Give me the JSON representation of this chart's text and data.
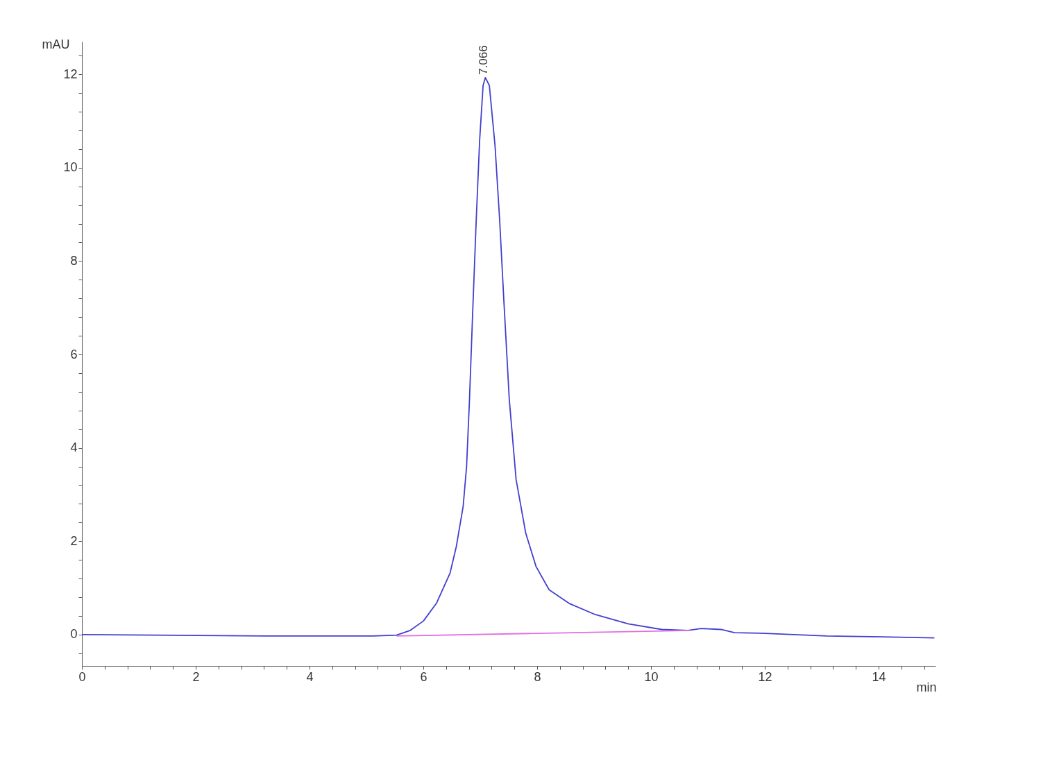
{
  "chart_data": {
    "type": "line",
    "xlabel": "min",
    "ylabel": "mAU",
    "xlim": [
      0,
      15
    ],
    "ylim": [
      -0.67,
      12.7
    ],
    "xticks": [
      0,
      {
        "value": 0.4,
        "label": null
      },
      {
        "value": 0.8,
        "label": null
      },
      {
        "value": 1.2,
        "label": null
      },
      {
        "value": 1.6,
        "label": null
      },
      2,
      {
        "value": 2.4,
        "label": null
      },
      {
        "value": 2.8,
        "label": null
      },
      {
        "value": 3.2,
        "label": null
      },
      {
        "value": 3.6,
        "label": null
      },
      4,
      {
        "value": 4.4,
        "label": null
      },
      {
        "value": 4.8,
        "label": null
      },
      {
        "value": 5.2,
        "label": null
      },
      {
        "value": 5.6,
        "label": null
      },
      6,
      {
        "value": 6.4,
        "label": null
      },
      {
        "value": 6.8,
        "label": null
      },
      {
        "value": 7.2,
        "label": null
      },
      {
        "value": 7.6,
        "label": null
      },
      8,
      {
        "value": 8.4,
        "label": null
      },
      {
        "value": 8.8,
        "label": null
      },
      {
        "value": 9.2,
        "label": null
      },
      {
        "value": 9.6,
        "label": null
      },
      10,
      {
        "value": 10.4,
        "label": null
      },
      {
        "value": 10.8,
        "label": null
      },
      {
        "value": 11.2,
        "label": null
      },
      {
        "value": 11.6,
        "label": null
      },
      12,
      {
        "value": 12.4,
        "label": null
      },
      {
        "value": 12.8,
        "label": null
      },
      {
        "value": 13.2,
        "label": null
      },
      {
        "value": 13.6,
        "label": null
      },
      14,
      {
        "value": 14.4,
        "label": null
      },
      {
        "value": 14.8,
        "label": null
      }
    ],
    "yticks": [
      {
        "value": -0.4,
        "label": null
      },
      0,
      {
        "value": 0.4,
        "label": null
      },
      {
        "value": 0.8,
        "label": null
      },
      {
        "value": 1.2,
        "label": null
      },
      {
        "value": 1.6,
        "label": null
      },
      2,
      {
        "value": 2.4,
        "label": null
      },
      {
        "value": 2.8,
        "label": null
      },
      {
        "value": 3.2,
        "label": null
      },
      {
        "value": 3.6,
        "label": null
      },
      4,
      {
        "value": 4.4,
        "label": null
      },
      {
        "value": 4.8,
        "label": null
      },
      {
        "value": 5.2,
        "label": null
      },
      {
        "value": 5.6,
        "label": null
      },
      6,
      {
        "value": 6.4,
        "label": null
      },
      {
        "value": 6.8,
        "label": null
      },
      {
        "value": 7.2,
        "label": null
      },
      {
        "value": 7.6,
        "label": null
      },
      8,
      {
        "value": 8.4,
        "label": null
      },
      {
        "value": 8.8,
        "label": null
      },
      {
        "value": 9.2,
        "label": null
      },
      {
        "value": 9.6,
        "label": null
      },
      10,
      {
        "value": 10.4,
        "label": null
      },
      {
        "value": 10.8,
        "label": null
      },
      {
        "value": 11.2,
        "label": null
      },
      {
        "value": 11.6,
        "label": null
      },
      12,
      {
        "value": 12.4,
        "label": null
      }
    ],
    "grid": false,
    "marker": "none",
    "line_style": "solid",
    "annotations": [
      {
        "text": "7.066",
        "x": 7.066,
        "y": 11.93
      }
    ],
    "series": [
      {
        "color": "#4040d0",
        "x": [
          0,
          3.21,
          5.12,
          5.53,
          5.77,
          6.0,
          6.23,
          6.47,
          6.58,
          6.7,
          6.76,
          6.81,
          6.87,
          6.93,
          6.99,
          7.05,
          7.09,
          7.16,
          7.26,
          7.34,
          7.42,
          7.51,
          7.63,
          7.8,
          7.98,
          8.21,
          8.56,
          9.02,
          9.6,
          10.19,
          10.65,
          10.88,
          11.23,
          11.47,
          11.93,
          13.09,
          13.67,
          14.98
        ],
        "values": [
          0,
          -0.03,
          -0.03,
          -0.01,
          0.09,
          0.29,
          0.67,
          1.32,
          1.89,
          2.75,
          3.6,
          5.0,
          7.0,
          8.9,
          10.6,
          11.76,
          11.93,
          11.76,
          10.47,
          8.9,
          7.04,
          5.04,
          3.32,
          2.17,
          1.46,
          0.96,
          0.67,
          0.43,
          0.23,
          0.11,
          0.09,
          0.13,
          0.11,
          0.04,
          0.03,
          -0.03,
          -0.04,
          -0.07
        ]
      },
      {
        "color": "#e070e0",
        "x": [
          5.53,
          10.71
        ],
        "values": [
          -0.03,
          0.09
        ]
      }
    ]
  }
}
